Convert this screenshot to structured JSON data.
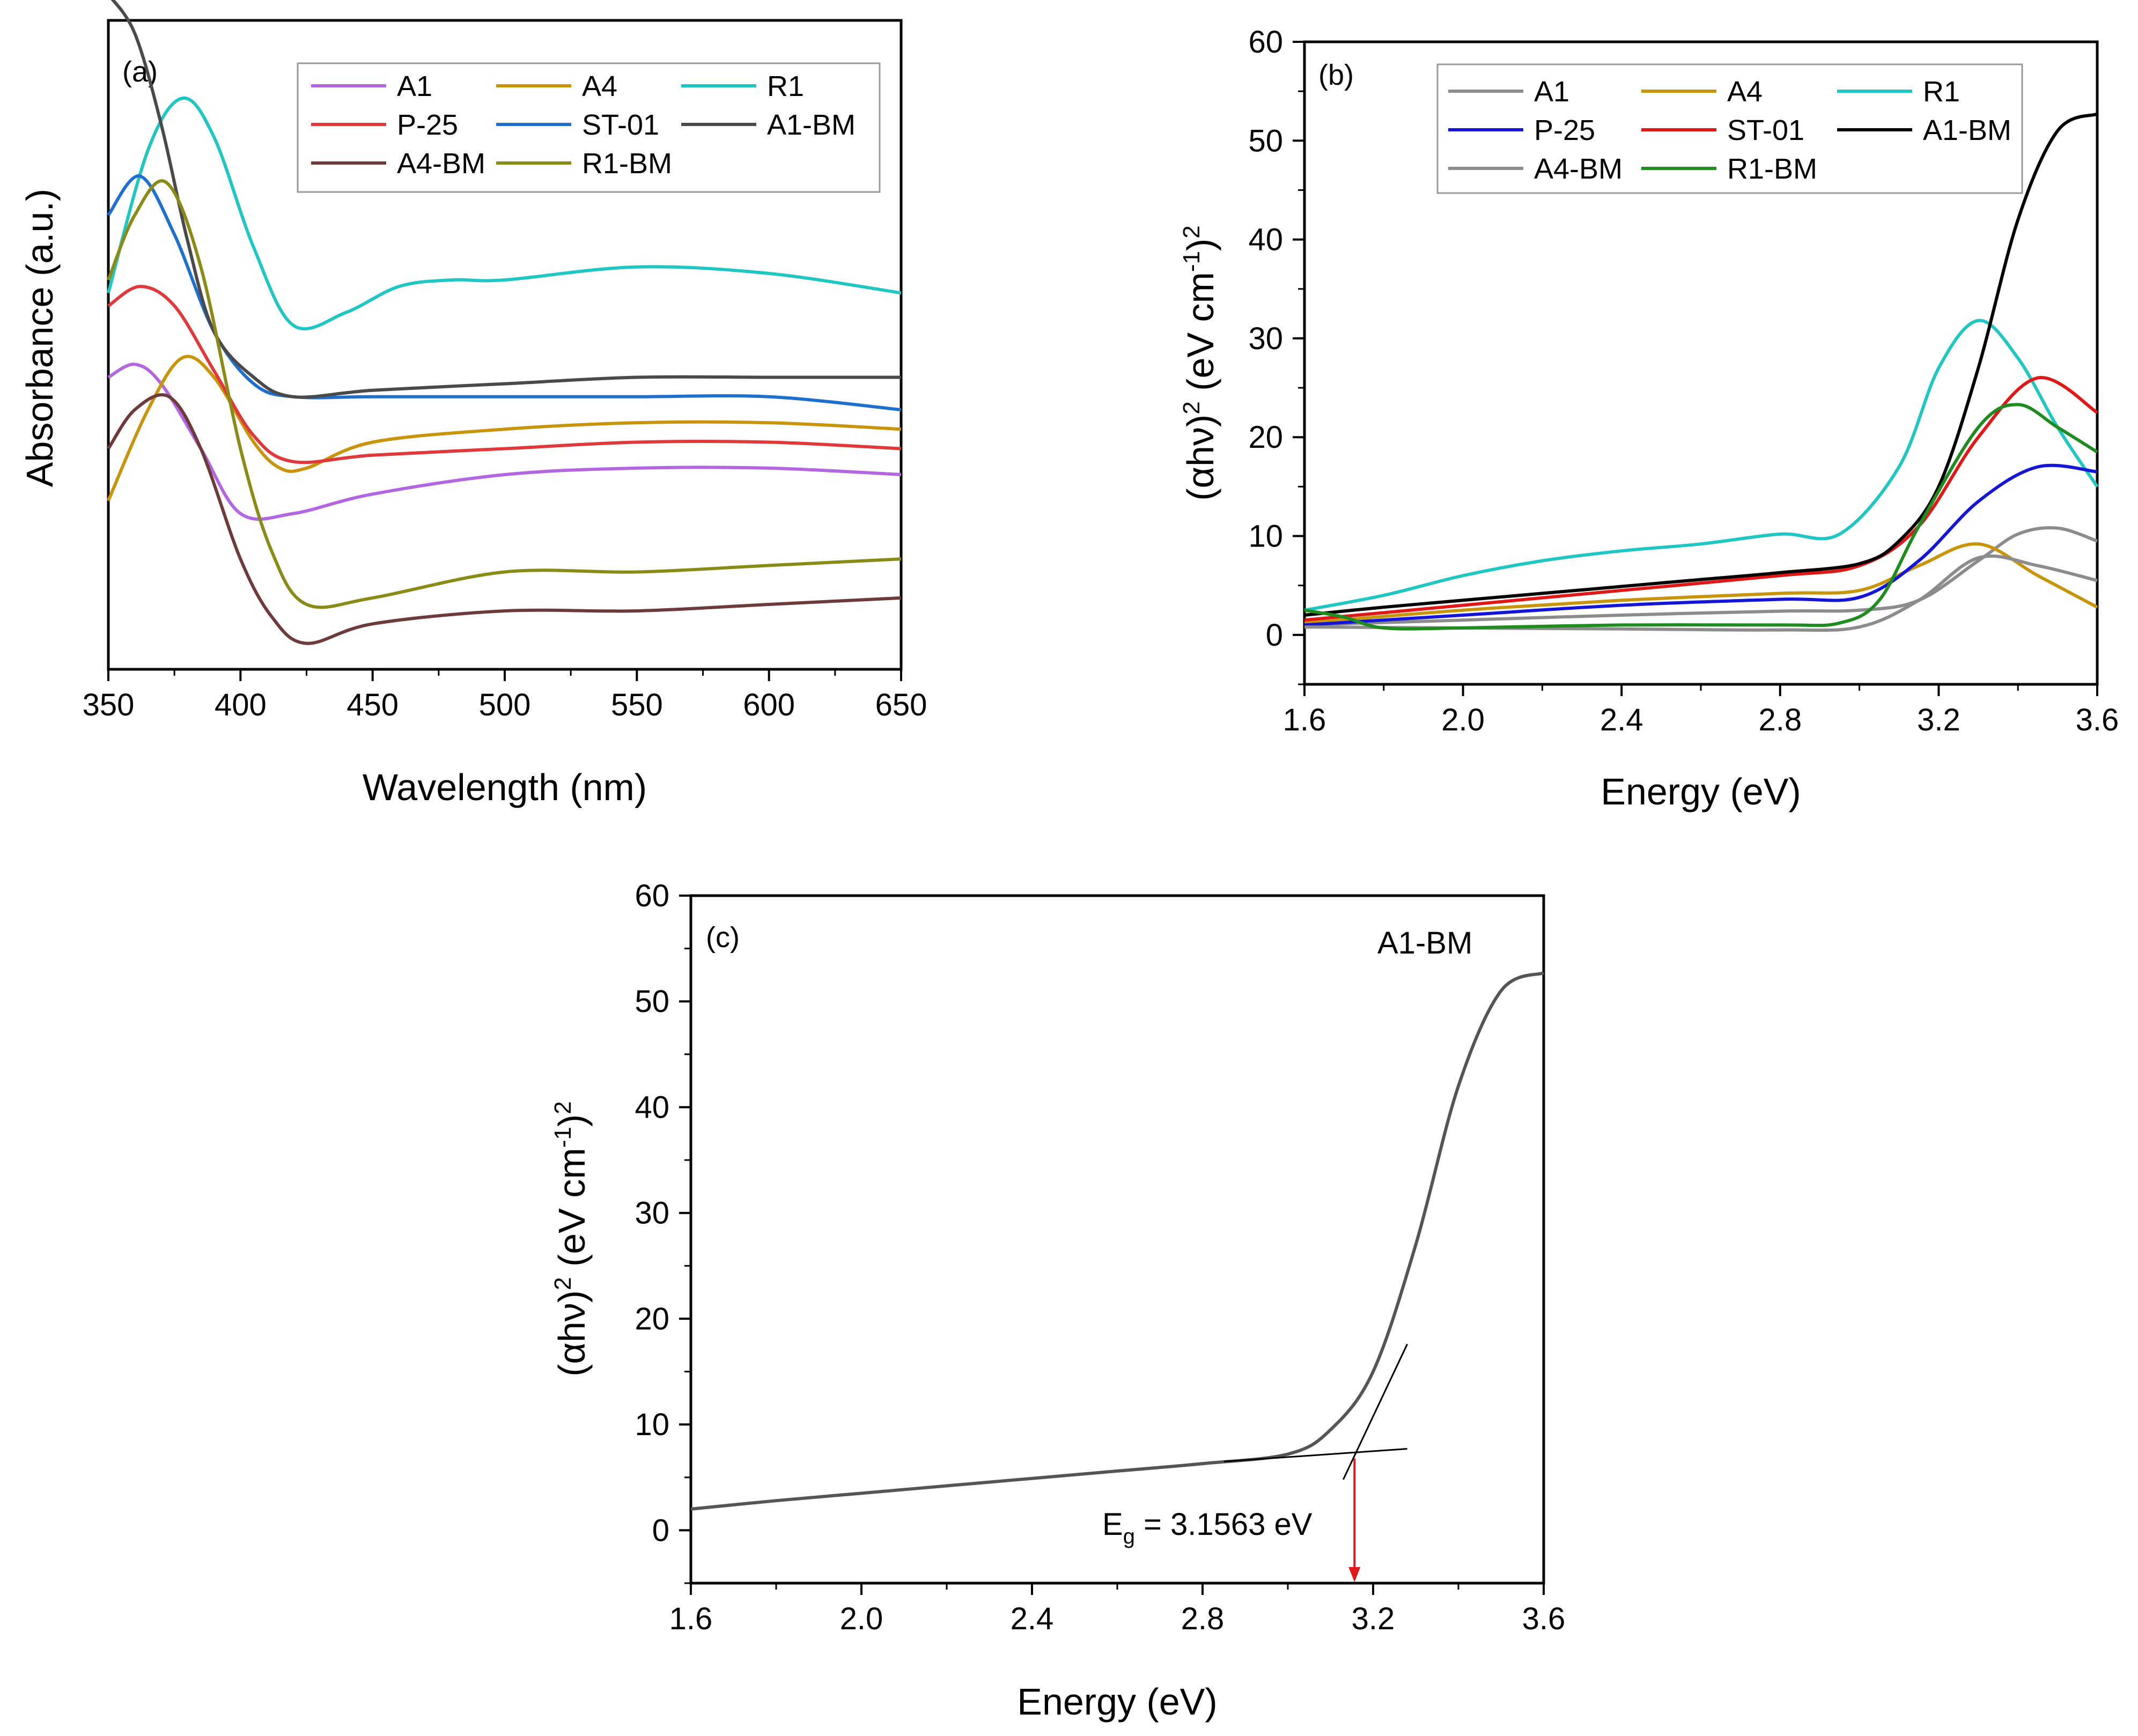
{
  "chart_data": [
    {
      "id": "a",
      "panel_label": "(a)",
      "type": "line",
      "title": "",
      "xlabel": "Wavelength (nm)",
      "ylabel": "Absorbance (a.u.)",
      "xlim": [
        350,
        650
      ],
      "ylim": [
        0,
        100
      ],
      "xticks": [
        350,
        400,
        450,
        500,
        550,
        600,
        650
      ],
      "xtick_labels": [
        "350",
        "400",
        "450",
        "500",
        "550",
        "600",
        "650"
      ],
      "yticks_visible": false,
      "legend_columns": 3,
      "legend_placement": "top-right",
      "series": [
        {
          "name": "A1",
          "color": "#B266E0",
          "x": [
            350,
            360,
            370,
            385,
            400,
            420,
            450,
            500,
            550,
            600,
            650
          ],
          "values": [
            45,
            47,
            44,
            34,
            24,
            24,
            27,
            30,
            31,
            31,
            30
          ]
        },
        {
          "name": "A4",
          "color": "#C8950A",
          "x": [
            350,
            365,
            378,
            390,
            405,
            415,
            425,
            450,
            500,
            550,
            600,
            650
          ],
          "values": [
            26,
            40,
            48,
            45,
            35,
            31,
            31,
            35,
            37,
            38,
            38,
            37
          ]
        },
        {
          "name": "R1",
          "color": "#20C6C2",
          "x": [
            350,
            365,
            378,
            390,
            405,
            420,
            440,
            460,
            480,
            500,
            550,
            600,
            650
          ],
          "values": [
            58,
            80,
            88,
            82,
            65,
            53,
            55,
            59,
            60,
            60,
            62,
            61,
            58
          ]
        },
        {
          "name": "P-25",
          "color": "#E0393C",
          "x": [
            350,
            362,
            375,
            390,
            405,
            420,
            450,
            500,
            550,
            600,
            650
          ],
          "values": [
            56,
            59,
            56,
            46,
            36,
            32,
            33,
            34,
            35,
            35,
            34
          ]
        },
        {
          "name": "ST-01",
          "color": "#1F6FCE",
          "x": [
            350,
            362,
            375,
            390,
            405,
            420,
            450,
            500,
            550,
            600,
            650
          ],
          "values": [
            70,
            76,
            67,
            52,
            44,
            42,
            42,
            42,
            42,
            42,
            40
          ]
        },
        {
          "name": "A1-BM",
          "color": "#4A4A4A",
          "x": [
            350,
            360,
            370,
            380,
            390,
            405,
            420,
            450,
            500,
            550,
            600,
            650
          ],
          "values": [
            104,
            98,
            84,
            66,
            52,
            45,
            42,
            43,
            44,
            45,
            45,
            45
          ]
        },
        {
          "name": "A4-BM",
          "color": "#6E3B3B",
          "x": [
            350,
            360,
            373,
            385,
            400,
            412,
            425,
            450,
            500,
            550,
            600,
            650
          ],
          "values": [
            34,
            40,
            42,
            34,
            17,
            8,
            4,
            7,
            9,
            9,
            10,
            11
          ]
        },
        {
          "name": "R1-BM",
          "color": "#8A8A16",
          "x": [
            350,
            360,
            372,
            385,
            400,
            412,
            425,
            450,
            500,
            550,
            600,
            650
          ],
          "values": [
            60,
            70,
            75,
            62,
            34,
            18,
            10,
            11,
            15,
            15,
            16,
            17
          ]
        }
      ]
    },
    {
      "id": "b",
      "panel_label": "(b)",
      "type": "line",
      "title": "",
      "xlabel": "Energy (eV)",
      "ylabel_prefix": "(αhν)",
      "ylabel_exp": "2",
      "ylabel_main": " (eV cm",
      "ylabel_inner_exp": "-1",
      "ylabel_suffix": ")",
      "xlim": [
        1.6,
        3.6
      ],
      "ylim": [
        -5,
        60
      ],
      "xticks": [
        1.6,
        2.0,
        2.4,
        2.8,
        3.2,
        3.6
      ],
      "xtick_labels": [
        "1.6",
        "2.0",
        "2.4",
        "2.8",
        "3.2",
        "3.6"
      ],
      "yticks": [
        0,
        10,
        20,
        30,
        40,
        50,
        60
      ],
      "ytick_labels": [
        "0",
        "10",
        "20",
        "30",
        "40",
        "50",
        "60"
      ],
      "legend_columns": 3,
      "legend_placement": "top",
      "series": [
        {
          "name": "A1",
          "color": "#8C8C8C",
          "x": [
            1.6,
            2.0,
            2.4,
            2.8,
            3.0,
            3.15,
            3.3,
            3.4,
            3.5,
            3.6
          ],
          "values": [
            1.0,
            1.5,
            2.0,
            2.4,
            2.5,
            3.5,
            7.5,
            10.2,
            10.8,
            9.5
          ]
        },
        {
          "name": "A4",
          "color": "#C8950A",
          "x": [
            1.6,
            2.0,
            2.4,
            2.8,
            3.0,
            3.15,
            3.3,
            3.45,
            3.6
          ],
          "values": [
            1.2,
            2.5,
            3.5,
            4.2,
            4.5,
            7.0,
            9.2,
            6.0,
            2.8
          ]
        },
        {
          "name": "R1",
          "color": "#20C6C2",
          "x": [
            1.6,
            1.8,
            2.0,
            2.2,
            2.4,
            2.6,
            2.8,
            2.95,
            3.1,
            3.2,
            3.3,
            3.4,
            3.5,
            3.6
          ],
          "values": [
            2.5,
            4.0,
            6.0,
            7.5,
            8.5,
            9.2,
            10.2,
            10.2,
            17.0,
            27.0,
            31.8,
            28.0,
            21.0,
            15.0
          ]
        },
        {
          "name": "P-25",
          "color": "#1515D8",
          "x": [
            1.6,
            2.0,
            2.4,
            2.8,
            3.0,
            3.15,
            3.3,
            3.45,
            3.6
          ],
          "values": [
            1.0,
            2.0,
            3.0,
            3.6,
            3.8,
            7.5,
            13.5,
            17.0,
            16.5
          ]
        },
        {
          "name": "ST-01",
          "color": "#E01818",
          "x": [
            1.6,
            2.0,
            2.4,
            2.8,
            3.0,
            3.15,
            3.3,
            3.45,
            3.6
          ],
          "values": [
            1.5,
            3.0,
            4.5,
            6.0,
            7.0,
            11.0,
            20.0,
            26.0,
            22.5
          ]
        },
        {
          "name": "A1-BM",
          "color": "#000000",
          "x": [
            1.6,
            1.8,
            2.0,
            2.2,
            2.4,
            2.6,
            2.8,
            3.0,
            3.1,
            3.2,
            3.3,
            3.4,
            3.5,
            3.6
          ],
          "values": [
            2.0,
            2.8,
            3.5,
            4.2,
            4.9,
            5.6,
            6.3,
            7.2,
            9.5,
            15.0,
            27.0,
            42.0,
            51.0,
            52.7
          ]
        },
        {
          "name": "A4-BM",
          "color": "#8C8C8C",
          "x": [
            1.6,
            2.0,
            2.4,
            2.8,
            3.0,
            3.15,
            3.3,
            3.45,
            3.6
          ],
          "values": [
            0.8,
            0.7,
            0.6,
            0.5,
            0.8,
            3.5,
            7.8,
            7.0,
            5.5
          ]
        },
        {
          "name": "R1-BM",
          "color": "#1E8C1E",
          "x": [
            1.6,
            1.7,
            1.8,
            2.0,
            2.4,
            2.8,
            2.95,
            3.05,
            3.15,
            3.3,
            3.4,
            3.5,
            3.6
          ],
          "values": [
            2.5,
            1.8,
            0.7,
            0.7,
            1.0,
            1.0,
            1.2,
            3.5,
            11.0,
            21.0,
            23.3,
            21.0,
            18.5
          ]
        }
      ]
    },
    {
      "id": "c",
      "panel_label": "(c)",
      "type": "line",
      "title": "A1-BM",
      "xlabel": "Energy (eV)",
      "ylabel_prefix": "(αhν)",
      "ylabel_exp": "2",
      "ylabel_main": " (eV cm",
      "ylabel_inner_exp": "-1",
      "ylabel_suffix": ")",
      "xlim": [
        1.6,
        3.6
      ],
      "ylim": [
        -5,
        60
      ],
      "xticks": [
        1.6,
        2.0,
        2.4,
        2.8,
        3.2,
        3.6
      ],
      "xtick_labels": [
        "1.6",
        "2.0",
        "2.4",
        "2.8",
        "3.2",
        "3.6"
      ],
      "yticks": [
        0,
        10,
        20,
        30,
        40,
        50,
        60
      ],
      "ytick_labels": [
        "0",
        "10",
        "20",
        "30",
        "40",
        "50",
        "60"
      ],
      "series": [
        {
          "name": "A1-BM",
          "color": "#555555",
          "x": [
            1.6,
            1.8,
            2.0,
            2.2,
            2.4,
            2.6,
            2.8,
            3.0,
            3.1,
            3.2,
            3.3,
            3.4,
            3.5,
            3.6
          ],
          "values": [
            2.0,
            2.8,
            3.5,
            4.2,
            4.9,
            5.6,
            6.3,
            7.2,
            9.5,
            15.0,
            27.0,
            42.0,
            51.0,
            52.7
          ]
        }
      ],
      "fit_lines": [
        {
          "name": "baseline-fit",
          "x": [
            2.85,
            3.28
          ],
          "values": [
            6.5,
            7.7
          ]
        },
        {
          "name": "tangent-fit",
          "x": [
            3.13,
            3.28
          ],
          "values": [
            4.8,
            17.6
          ]
        }
      ],
      "bandgap": {
        "prefix": "E",
        "subscript": "g",
        "text": " = 3.1563 eV",
        "value": 3.1563,
        "arrow_color": "#E01818"
      }
    }
  ]
}
